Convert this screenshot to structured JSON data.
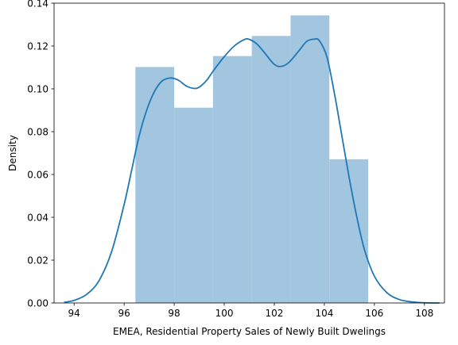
{
  "chart_data": {
    "type": "histogram",
    "title": "",
    "xlabel": "EMEA, Residential Property Sales of Newly Built Dwelings",
    "ylabel": "Density",
    "xlim": [
      93.2,
      108.8
    ],
    "ylim": [
      0,
      0.14
    ],
    "xticks": [
      94,
      96,
      98,
      100,
      102,
      104,
      106,
      108
    ],
    "yticks": [
      0.0,
      0.02,
      0.04,
      0.06,
      0.08,
      0.1,
      0.12,
      0.14
    ],
    "ytick_labels": [
      "0.00",
      "0.02",
      "0.04",
      "0.06",
      "0.08",
      "0.10",
      "0.12",
      "0.14"
    ],
    "grid": false,
    "legend": "none",
    "bins": [
      {
        "x0": 96.45,
        "x1": 98.0,
        "density": 0.1102
      },
      {
        "x0": 98.0,
        "x1": 99.55,
        "density": 0.0912
      },
      {
        "x0": 99.55,
        "x1": 101.1,
        "density": 0.1153
      },
      {
        "x0": 101.1,
        "x1": 102.65,
        "density": 0.1247
      },
      {
        "x0": 102.65,
        "x1": 104.2,
        "density": 0.1343
      },
      {
        "x0": 104.2,
        "x1": 105.75,
        "density": 0.0671
      }
    ],
    "kde": {
      "x": [
        93.6,
        94.0,
        94.5,
        95.0,
        95.5,
        96.0,
        96.3,
        96.6,
        96.9,
        97.2,
        97.5,
        97.8,
        98.0,
        98.2,
        98.5,
        98.8,
        99.0,
        99.3,
        99.6,
        100.0,
        100.4,
        100.8,
        101.0,
        101.3,
        101.6,
        102.0,
        102.3,
        102.6,
        103.0,
        103.3,
        103.6,
        103.8,
        104.1,
        104.4,
        104.7,
        105.0,
        105.3,
        105.6,
        106.0,
        106.5,
        107.0,
        107.5,
        108.0,
        108.6
      ],
      "y": [
        0.0003,
        0.0012,
        0.004,
        0.0105,
        0.024,
        0.046,
        0.062,
        0.078,
        0.09,
        0.0985,
        0.1035,
        0.105,
        0.1048,
        0.1038,
        0.1012,
        0.1002,
        0.1008,
        0.104,
        0.109,
        0.115,
        0.12,
        0.123,
        0.1231,
        0.121,
        0.117,
        0.1114,
        0.1105,
        0.1125,
        0.118,
        0.1222,
        0.1232,
        0.1225,
        0.115,
        0.098,
        0.078,
        0.058,
        0.04,
        0.025,
        0.0125,
        0.0048,
        0.0016,
        0.0005,
        0.0001,
        0.0
      ]
    },
    "colors": {
      "bars": "#a3c6e0",
      "kde_line": "#1f77b4",
      "axes": "#000000"
    }
  }
}
